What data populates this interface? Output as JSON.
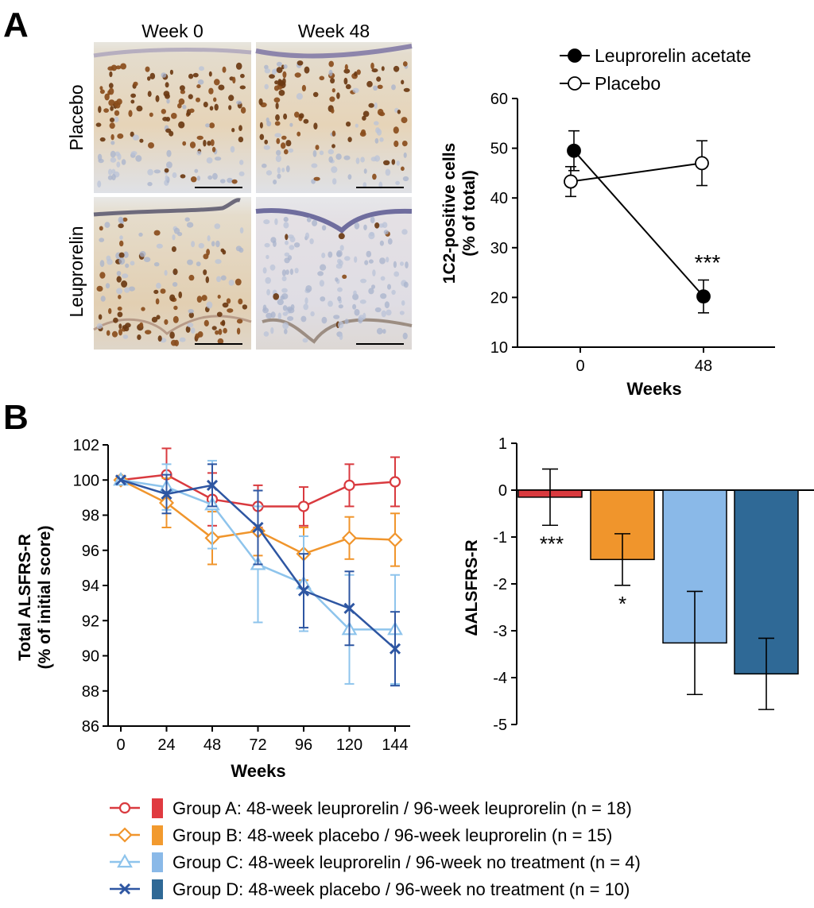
{
  "panel_labels": {
    "a": "A",
    "b": "B"
  },
  "micro": {
    "col_labels": [
      "Week 0",
      "Week 48"
    ],
    "row_labels": [
      "Placebo",
      "Leuprorelin"
    ]
  },
  "chart_data": [
    {
      "id": "chartA",
      "type": "line",
      "title": "",
      "xlabel": "Weeks",
      "ylabel": "1C2-positive cells",
      "ylabel2": "(% of total)",
      "x": [
        0,
        48
      ],
      "xticks": [
        "0",
        "48"
      ],
      "ylim": [
        10,
        60
      ],
      "yticks": [
        10,
        20,
        30,
        40,
        50,
        60
      ],
      "grid": false,
      "legend_position": "top-right",
      "series": [
        {
          "name": "Leuprorelin acetate",
          "marker": "filled-circle",
          "color": "#000000",
          "values": [
            49.5,
            20.2
          ],
          "err": [
            4.0,
            3.3
          ]
        },
        {
          "name": "Placebo",
          "marker": "open-circle",
          "color": "#000000",
          "values": [
            43.3,
            47.0
          ],
          "err": [
            3.0,
            4.5
          ]
        }
      ],
      "annotations": [
        {
          "x": 48,
          "text": "***"
        }
      ]
    },
    {
      "id": "chartB1",
      "type": "line",
      "title": "",
      "xlabel": "Weeks",
      "ylabel": "Total ALSFRS-R",
      "ylabel2": "(% of initial score)",
      "x": [
        0,
        24,
        48,
        72,
        96,
        120,
        144
      ],
      "xticks": [
        "0",
        "24",
        "48",
        "72",
        "96",
        "120",
        "144"
      ],
      "ylim": [
        86,
        102
      ],
      "yticks": [
        86,
        88,
        90,
        92,
        94,
        96,
        98,
        100,
        102
      ],
      "grid": false,
      "series": [
        {
          "name": "Group A",
          "color": "#d93a3f",
          "marker": "circle",
          "values": [
            100,
            100.3,
            98.9,
            98.5,
            98.5,
            99.7,
            99.9
          ],
          "err": [
            0,
            1.5,
            1.5,
            1.2,
            1.1,
            1.2,
            1.4
          ]
        },
        {
          "name": "Group B",
          "color": "#f0952c",
          "marker": "diamond",
          "values": [
            100,
            98.7,
            96.7,
            97.1,
            95.8,
            96.7,
            96.6
          ],
          "err": [
            0,
            1.4,
            1.5,
            1.4,
            1.5,
            1.2,
            1.5
          ]
        },
        {
          "name": "Group C",
          "color": "#8ec4ec",
          "marker": "triangle",
          "values": [
            100,
            99.6,
            98.6,
            95.2,
            94.1,
            91.5,
            91.5
          ],
          "err": [
            0,
            1.3,
            2.5,
            3.3,
            2.7,
            3.1,
            3.1
          ]
        },
        {
          "name": "Group D",
          "color": "#2e56a2",
          "marker": "x",
          "values": [
            100,
            99.2,
            99.7,
            97.3,
            93.7,
            92.7,
            90.4
          ],
          "err": [
            0,
            1.1,
            1.2,
            2.1,
            2.1,
            2.1,
            2.1
          ]
        }
      ]
    },
    {
      "id": "chartB2",
      "type": "bar",
      "title": "",
      "xlabel": "",
      "ylabel": "ΔALSFRS-R",
      "categories": [
        "Group A",
        "Group B",
        "Group C",
        "Group D"
      ],
      "values": [
        -0.15,
        -1.48,
        -3.26,
        -3.92
      ],
      "err": [
        0.6,
        0.55,
        1.1,
        0.76
      ],
      "colors": [
        "#d93a3f",
        "#f0952c",
        "#8ab9e8",
        "#2f6996"
      ],
      "ylim": [
        -5,
        1
      ],
      "yticks": [
        "1",
        "0",
        "-1",
        "-2",
        "-3",
        "-4",
        "-5"
      ],
      "grid": false,
      "annotations": [
        {
          "index": 0,
          "text": "***"
        },
        {
          "index": 1,
          "text": "*"
        }
      ]
    }
  ],
  "legend": [
    {
      "label": "Group A: 48-week leuprorelin / 96-week leuprorelin (n = 18)",
      "line_color": "#d93a3f",
      "marker": "circle",
      "box_color": "#e03a40"
    },
    {
      "label": "Group B: 48-week placebo / 96-week leuprorelin (n = 15)",
      "line_color": "#f0952c",
      "marker": "diamond",
      "box_color": "#f29a2e"
    },
    {
      "label": "Group C: 48-week leuprorelin / 96-week no treatment (n = 4)",
      "line_color": "#8ec4ec",
      "marker": "triangle",
      "box_color": "#8ab9e8"
    },
    {
      "label": "Group D: 48-week placebo / 96-week no treatment (n = 10)",
      "line_color": "#2e56a2",
      "marker": "x",
      "box_color": "#2f6996"
    }
  ]
}
